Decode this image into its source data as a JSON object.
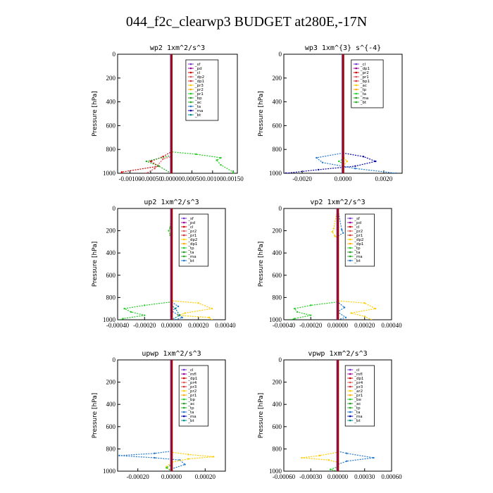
{
  "title": "044_f2c_clearwp3  BUDGET at280E,-17N",
  "chart_data": [
    {
      "type": "line",
      "title": "wp2  1xm^2/s^3",
      "ylabel": "Pressure [hPa]",
      "xlim": [
        -0.0013,
        0.0016
      ],
      "ylim": [
        1000,
        0
      ],
      "xticks": [
        -0.001,
        -0.0005,
        0.0,
        0.0005,
        0.001,
        0.0015
      ],
      "xticklabels": [
        "-0.00100",
        "-0.00050",
        "0.00000",
        "0.00050",
        "0.00100",
        "0.00150"
      ],
      "yticks": [
        0,
        200,
        400,
        600,
        800,
        1000
      ],
      "legend": [
        "_sf",
        "_pd",
        "_cl",
        "_dp2",
        "_dp1",
        "_pr3",
        "_pr2",
        "_pr1",
        "_bp",
        "_ac",
        "_ta",
        "_ma",
        "_bt"
      ],
      "series": [
        {
          "name": "_pr1",
          "color": "#22cc22",
          "points": [
            [
              0,
              0
            ],
            [
              0,
              820
            ],
            [
              0.0006,
              840
            ],
            [
              0.0012,
              870
            ],
            [
              0.0011,
              890
            ],
            [
              0.0012,
              930
            ],
            [
              0.0015,
              990
            ],
            [
              0.0015,
              1000
            ]
          ]
        },
        {
          "name": "_dp2",
          "color": "#cc0000",
          "points": [
            [
              0,
              0
            ],
            [
              0,
              820
            ],
            [
              -0.0002,
              860
            ],
            [
              -0.0005,
              900
            ],
            [
              -0.0003,
              940
            ],
            [
              -0.0012,
              990
            ],
            [
              -0.0012,
              1000
            ]
          ]
        },
        {
          "name": "_dp1",
          "color": "#dd5555",
          "points": [
            [
              0,
              0
            ],
            [
              0,
              860
            ],
            [
              -0.0002,
              880
            ],
            [
              -0.0004,
              960
            ],
            [
              -0.0006,
              1000
            ]
          ]
        },
        {
          "name": "_ac",
          "color": "#22aa22",
          "points": [
            [
              0,
              0
            ],
            [
              0,
              850
            ],
            [
              -0.0006,
              900
            ],
            [
              -0.0003,
              940
            ],
            [
              0,
              1000
            ]
          ]
        },
        {
          "name": "_pd",
          "color": "#990099",
          "points": [
            [
              0,
              0
            ],
            [
              0,
              1000
            ]
          ]
        },
        {
          "name": "_bt",
          "color": "#9900cc",
          "points": [
            [
              0,
              0
            ],
            [
              0,
              1000
            ]
          ]
        }
      ]
    },
    {
      "type": "line",
      "title": "wp3  1xm^{3} s^{-4}",
      "ylabel": "Pressure [hPa]",
      "xlim": [
        -0.0029,
        0.0029
      ],
      "ylim": [
        1000,
        0
      ],
      "xticks": [
        -0.002,
        0.0,
        0.002
      ],
      "xticklabels": [
        "-0.0020",
        "0.0000",
        "0.0020"
      ],
      "yticks": [
        0,
        200,
        400,
        600,
        800,
        1000
      ],
      "legend": [
        "_cl",
        "_dp1",
        "_pr2",
        "_pr1",
        "_bp1",
        "_ac",
        "_tp",
        "_ta",
        "_ma",
        "_bt"
      ],
      "series": [
        {
          "name": "_ta",
          "color": "#0000aa",
          "points": [
            [
              0,
              0
            ],
            [
              0,
              830
            ],
            [
              0.001,
              860
            ],
            [
              0.0016,
              900
            ],
            [
              0.0006,
              940
            ],
            [
              -0.0012,
              970
            ],
            [
              -0.0028,
              1000
            ]
          ]
        },
        {
          "name": "_tp",
          "color": "#2277cc",
          "points": [
            [
              0,
              0
            ],
            [
              0,
              830
            ],
            [
              -0.0013,
              870
            ],
            [
              -0.001,
              910
            ],
            [
              0.0006,
              960
            ],
            [
              0.0026,
              1000
            ]
          ]
        },
        {
          "name": "_ac",
          "color": "#22cc22",
          "points": [
            [
              0,
              0
            ],
            [
              0,
              880
            ],
            [
              -0.0002,
              900
            ],
            [
              0,
              920
            ],
            [
              0,
              1000
            ]
          ]
        },
        {
          "name": "_pr2",
          "color": "#ffcc00",
          "points": [
            [
              0,
              0
            ],
            [
              0,
              860
            ],
            [
              0.0002,
              900
            ],
            [
              0,
              940
            ],
            [
              0,
              1000
            ]
          ]
        },
        {
          "name": "_dp1",
          "color": "#cc0000",
          "points": [
            [
              0,
              0
            ],
            [
              0,
              1000
            ]
          ]
        }
      ]
    },
    {
      "type": "line",
      "title": "up2  1xm^2/s^3",
      "ylabel": "Pressure [hPa]",
      "xlim": [
        -0.0004,
        0.0004
      ],
      "ylim": [
        1000,
        0
      ],
      "xticks": [
        -0.0004,
        -0.0002,
        0.0,
        0.0002,
        0.0004
      ],
      "xticklabels": [
        "-0.00040",
        "-0.00020",
        "0.00000",
        "0.00020",
        "0.00040"
      ],
      "yticks": [
        0,
        200,
        400,
        600,
        800,
        1000
      ],
      "legend": [
        "_sf",
        "_pd",
        "_cl",
        "_pr2",
        "_pr1",
        "_dp2",
        "_dp1",
        "_tp",
        "_ta",
        "_ma",
        "_bt"
      ],
      "series": [
        {
          "name": "_dp2",
          "color": "#22cc22",
          "points": [
            [
              0,
              0
            ],
            [
              -1e-05,
              170
            ],
            [
              -2e-05,
              200
            ],
            [
              -1e-05,
              240
            ],
            [
              0,
              260
            ],
            [
              0,
              840
            ],
            [
              -0.0002,
              870
            ],
            [
              -0.00035,
              900
            ],
            [
              -0.0003,
              930
            ],
            [
              -0.0002,
              960
            ],
            [
              -0.00036,
              990
            ],
            [
              -0.00038,
              1000
            ]
          ]
        },
        {
          "name": "_pr2",
          "color": "#ffcc00",
          "points": [
            [
              0,
              0
            ],
            [
              0,
              830
            ],
            [
              0.0002,
              850
            ],
            [
              0.0003,
              900
            ],
            [
              0.0001,
              940
            ],
            [
              5e-05,
              960
            ],
            [
              0.00028,
              980
            ],
            [
              0.0003,
              1000
            ]
          ]
        },
        {
          "name": "_tp",
          "color": "#2277cc",
          "points": [
            [
              0,
              0
            ],
            [
              0,
              840
            ],
            [
              5e-05,
              880
            ],
            [
              0,
              920
            ],
            [
              8e-05,
              980
            ],
            [
              3e-05,
              1000
            ]
          ]
        },
        {
          "name": "_ma",
          "color": "#008888",
          "points": [
            [
              0,
              0
            ],
            [
              0,
              870
            ],
            [
              3e-05,
              900
            ],
            [
              6e-05,
              960
            ],
            [
              0,
              1000
            ]
          ]
        },
        {
          "name": "_cl",
          "color": "#cc0000",
          "points": [
            [
              0,
              0
            ],
            [
              0,
              1000
            ]
          ]
        }
      ]
    },
    {
      "type": "line",
      "title": "vp2  1xm^2/s^3",
      "ylabel": "Pressure [hPa]",
      "xlim": [
        -0.0004,
        0.0004
      ],
      "ylim": [
        1000,
        0
      ],
      "xticks": [
        -0.0004,
        -0.0002,
        0.0,
        0.0002,
        0.0004
      ],
      "xticklabels": [
        "-0.00040",
        "-0.00020",
        "0.00000",
        "0.00020",
        "0.00040"
      ],
      "yticks": [
        0,
        200,
        400,
        600,
        800,
        1000
      ],
      "legend": [
        "_sf",
        "_pd",
        "_cl",
        "_pr2",
        "_pr1",
        "_dp2",
        "_dp1",
        "_tp",
        "_ta",
        "_ma",
        "_bt"
      ],
      "series": [
        {
          "name": "_pr2",
          "color": "#ffcc00",
          "points": [
            [
              0,
              0
            ],
            [
              -3e-05,
              180
            ],
            [
              -4e-05,
              210
            ],
            [
              -2e-05,
              250
            ],
            [
              0,
              260
            ],
            [
              0,
              830
            ],
            [
              0.0002,
              850
            ],
            [
              0.00028,
              900
            ],
            [
              0.0001,
              940
            ],
            [
              0.0002,
              970
            ],
            [
              0.00025,
              1000
            ]
          ]
        },
        {
          "name": "_tp",
          "color": "#2277cc",
          "points": [
            [
              0,
              0
            ],
            [
              3e-05,
              190
            ],
            [
              4e-05,
              220
            ],
            [
              0,
              250
            ],
            [
              0,
              840
            ],
            [
              5e-05,
              890
            ],
            [
              0,
              930
            ],
            [
              6e-05,
              980
            ],
            [
              0,
              1000
            ]
          ]
        },
        {
          "name": "_dp2",
          "color": "#22cc22",
          "points": [
            [
              0,
              0
            ],
            [
              0,
              840
            ],
            [
              -0.0002,
              870
            ],
            [
              -0.00032,
              900
            ],
            [
              -0.0003,
              930
            ],
            [
              -0.0002,
              960
            ],
            [
              -0.00032,
              990
            ],
            [
              -0.00035,
              1000
            ]
          ]
        },
        {
          "name": "_cl",
          "color": "#cc0000",
          "points": [
            [
              0,
              0
            ],
            [
              0,
              1000
            ]
          ]
        }
      ]
    },
    {
      "type": "line",
      "title": "upwp  1xm^2/s^3",
      "ylabel": "Pressure [hPa]",
      "xlim": [
        -0.00032,
        0.00032
      ],
      "ylim": [
        1000,
        0
      ],
      "xticks": [
        -0.0002,
        0.0,
        0.0002
      ],
      "xticklabels": [
        "-0.00020",
        "0.00000",
        "0.00020"
      ],
      "yticks": [
        0,
        200,
        400,
        600,
        800,
        1000
      ],
      "legend": [
        "_cl",
        "_mfl",
        "_dp1",
        "_pr4",
        "_pr3",
        "_pr2",
        "_pr1",
        "_bp",
        "_ac",
        "_tp",
        "_ta",
        "_ma",
        "_bt"
      ],
      "series": [
        {
          "name": "_tp",
          "color": "#2277cc",
          "points": [
            [
              0,
              0
            ],
            [
              0,
              820
            ],
            [
              -0.0001,
              840
            ],
            [
              -0.00031,
              860
            ],
            [
              -0.0001,
              880
            ],
            [
              5e-05,
              900
            ],
            [
              8e-05,
              940
            ],
            [
              0,
              980
            ],
            [
              0,
              1000
            ]
          ]
        },
        {
          "name": "_pr2",
          "color": "#ffcc00",
          "points": [
            [
              0,
              0
            ],
            [
              0,
              830
            ],
            [
              0.0001,
              850
            ],
            [
              0.00025,
              870
            ],
            [
              0.0001,
              890
            ],
            [
              0,
              920
            ],
            [
              -3e-05,
              960
            ],
            [
              0,
              1000
            ]
          ]
        },
        {
          "name": "_bp",
          "color": "#22cc22",
          "points": [
            [
              0,
              0
            ],
            [
              0,
              940
            ],
            [
              -3e-05,
              970
            ],
            [
              0,
              1000
            ]
          ]
        },
        {
          "name": "_cl",
          "color": "#cc0000",
          "points": [
            [
              0,
              0
            ],
            [
              0,
              1000
            ]
          ]
        }
      ]
    },
    {
      "type": "line",
      "title": "vpwp  1xm^2/s^3",
      "ylabel": "Pressure [hPa]",
      "xlim": [
        -0.0006,
        0.0006
      ],
      "ylim": [
        1000,
        0
      ],
      "xticks": [
        -0.0006,
        -0.0003,
        0.0,
        0.0003,
        0.0006
      ],
      "xticklabels": [
        "-0.00060",
        "-0.00030",
        "0.00000",
        "0.00030",
        "0.00060"
      ],
      "yticks": [
        0,
        200,
        400,
        600,
        800,
        1000
      ],
      "legend": [
        "_cl",
        "_mfl",
        "_dp1",
        "_pr4",
        "_pr3",
        "_ar2",
        "_pr1",
        "_be",
        "_ac",
        "_tp",
        "_ta",
        "_ma",
        "_bt"
      ],
      "series": [
        {
          "name": "_tp",
          "color": "#2277cc",
          "points": [
            [
              0,
              0
            ],
            [
              0,
              820
            ],
            [
              0.0001,
              840
            ],
            [
              0.0004,
              880
            ],
            [
              0.0001,
              910
            ],
            [
              0,
              940
            ],
            [
              0,
              1000
            ]
          ]
        },
        {
          "name": "_ar2",
          "color": "#ffcc00",
          "points": [
            [
              0,
              0
            ],
            [
              0,
              830
            ],
            [
              -0.0002,
              860
            ],
            [
              -0.0004,
              880
            ],
            [
              -0.0001,
              900
            ],
            [
              0,
              920
            ],
            [
              0,
              1000
            ]
          ]
        },
        {
          "name": "_ac",
          "color": "#22cc22",
          "points": [
            [
              0,
              0
            ],
            [
              0,
              960
            ],
            [
              -8e-05,
              985
            ],
            [
              0,
              1000
            ]
          ]
        },
        {
          "name": "_dp1",
          "color": "#cc0000",
          "points": [
            [
              0,
              0
            ],
            [
              0,
              1000
            ]
          ]
        }
      ]
    }
  ]
}
